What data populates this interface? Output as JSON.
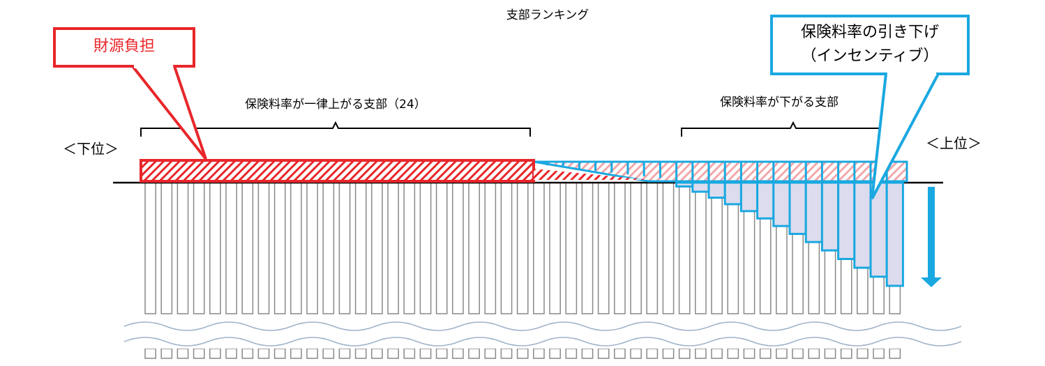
{
  "title": "支部ランキング",
  "callouts": {
    "burden": "財源負担",
    "reduction": [
      "保険料率の引き下げ",
      "（インセンティブ）"
    ]
  },
  "groups": {
    "rising": "保険料率が一律上がる支部（24）",
    "falling": "保険料率が下がる支部"
  },
  "ends": {
    "low": "＜下位＞",
    "high": "＜上位＞"
  }
}
